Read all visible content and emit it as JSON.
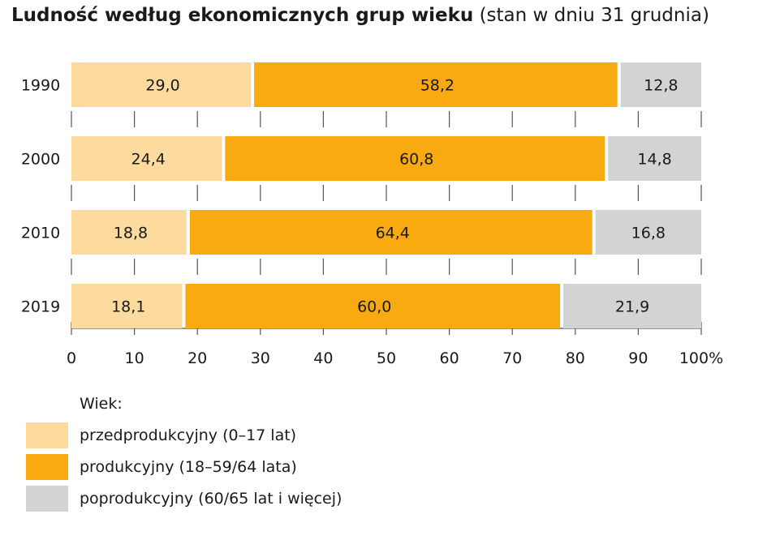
{
  "title": {
    "main": "Ludność według ekonomicznych grup wieku",
    "sub": "(stan w dniu 31 grudnia)"
  },
  "legend": {
    "title": "Wiek:",
    "items": [
      {
        "label": "przedprodukcyjny (0–17 lat)",
        "color": "#fddb9f"
      },
      {
        "label": "produkcyjny (18–59/64 lata)",
        "color": "#f8aa10"
      },
      {
        "label": "poprodukcyjny (60/65 lat i więcej)",
        "color": "#d1d3d4"
      }
    ]
  },
  "chart_data": {
    "type": "bar",
    "orientation": "horizontal",
    "stacked": true,
    "categories": [
      "1990",
      "2000",
      "2010",
      "2019"
    ],
    "series": [
      {
        "name": "przedprodukcyjny (0–17 lat)",
        "color": "#fddb9f",
        "values": [
          29.0,
          24.4,
          18.8,
          18.1
        ],
        "labels": [
          "29,0",
          "24,4",
          "18,8",
          "18,1"
        ]
      },
      {
        "name": "produkcyjny (18–59/64 lata)",
        "color": "#f8aa10",
        "values": [
          58.2,
          60.8,
          64.4,
          60.0
        ],
        "labels": [
          "58,2",
          "60,8",
          "64,4",
          "60,0"
        ]
      },
      {
        "name": "poprodukcyjny (60/65 lat i więcej)",
        "color": "#d1d3d4",
        "values": [
          12.8,
          14.8,
          16.8,
          21.9
        ],
        "labels": [
          "12,8",
          "14,8",
          "16,8",
          "21,9"
        ]
      }
    ],
    "x_ticks": [
      "0",
      "10",
      "20",
      "30",
      "40",
      "50",
      "60",
      "70",
      "80",
      "90",
      "100%"
    ],
    "xlim": [
      0,
      100
    ],
    "grid": false,
    "legend_position": "bottom-left"
  }
}
